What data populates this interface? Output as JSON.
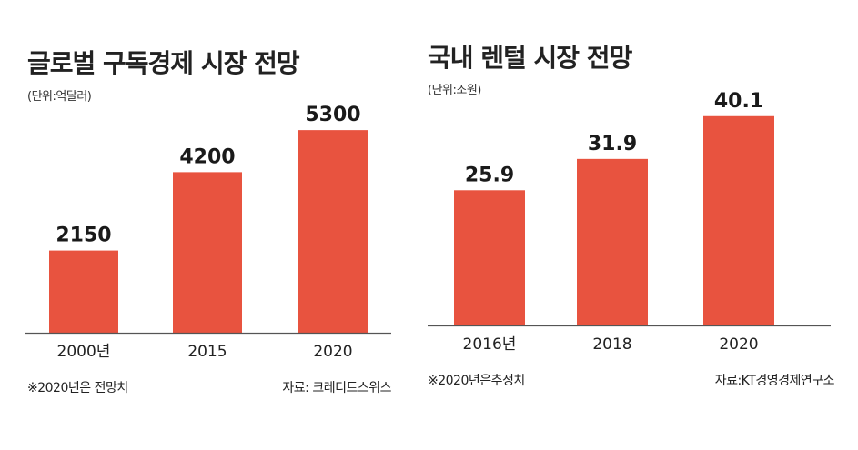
{
  "colors": {
    "bar": "#E8533F",
    "axis": "#555555"
  },
  "charts": [
    {
      "title": "글로벌 구독경제 시장 전망",
      "unit": "(단위:억달러)",
      "note": "※2020년은 전망치",
      "source": "자료: 크레디트스위스"
    },
    {
      "title": "국내 렌털 시장 전망",
      "unit": "(단위:조원)",
      "note": "※2020년은추정치",
      "source": "자료:KT경영경제연구소"
    }
  ],
  "chart_data": [
    {
      "type": "bar",
      "title": "글로벌 구독경제 시장 전망",
      "categories": [
        "2000년",
        "2015",
        "2020"
      ],
      "values": [
        2150,
        4200,
        5300
      ],
      "value_labels": [
        "2150",
        "4200",
        "5300"
      ],
      "ylim": [
        0,
        5850
      ],
      "grid": false,
      "xlabel": "",
      "ylabel": ""
    },
    {
      "type": "bar",
      "title": "국내 렌털 시장 전망",
      "categories": [
        "2016년",
        "2018",
        "2020"
      ],
      "values": [
        25.9,
        31.9,
        40.1
      ],
      "value_labels": [
        "25.9",
        "31.9",
        "40.1"
      ],
      "ylim": [
        0,
        41.8
      ],
      "grid": false,
      "xlabel": "",
      "ylabel": ""
    }
  ]
}
